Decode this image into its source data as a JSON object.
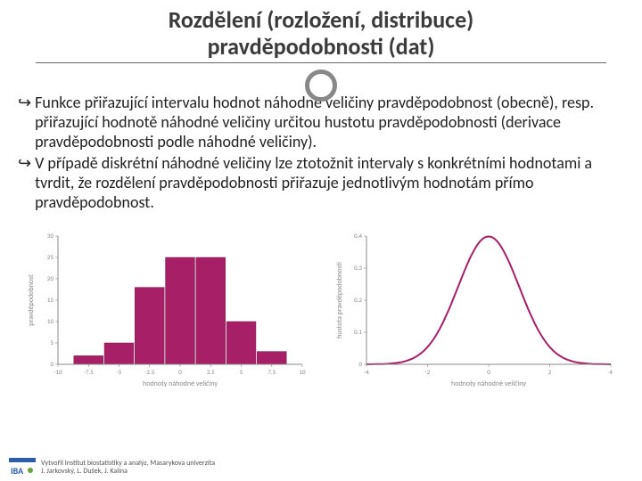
{
  "title": {
    "line1": "Rozdělení (rozložení, distribuce)",
    "line2": "pravděpodobnosti (dat)"
  },
  "bullets": [
    "Funkce přiřazující intervalu hodnot náhodné veličiny pravděpodobnost (obecně), resp. přiřazující hodnotě náhodné veličiny určitou hustotu pravděpodobnosti (derivace pravděpodobnosti podle náhodné veličiny).",
    "V případě diskrétní náhodné veličiny lze ztotožnit intervaly s konkrétními hodnotami a tvrdit, že rozdělení pravděpodobnosti přiřazuje jednotlivým hodnotám přímo pravděpodobnost."
  ],
  "histogram": {
    "type": "bar",
    "xlabel": "hodnoty náhodné veličiny",
    "ylabel": "pravděpodobnost",
    "bar_color": "#a61f67",
    "border_color": "#7a1750",
    "background_color": "#ffffff",
    "axis_color": "#888888",
    "xticks": [
      -10,
      -7.5,
      -5,
      -2.5,
      0,
      2.5,
      5,
      7.5,
      10
    ],
    "xlim": [
      -10,
      10
    ],
    "ylim": [
      0,
      30
    ],
    "yticks": [
      0,
      5,
      10,
      15,
      20,
      25,
      30
    ],
    "bars": [
      {
        "x": -7.5,
        "h": 2
      },
      {
        "x": -5,
        "h": 5
      },
      {
        "x": -2.5,
        "h": 18
      },
      {
        "x": 0,
        "h": 25
      },
      {
        "x": 2.5,
        "h": 25
      },
      {
        "x": 5,
        "h": 10
      },
      {
        "x": 7.5,
        "h": 3
      }
    ],
    "bar_width": 2.4,
    "label_fontsize": 8
  },
  "density": {
    "type": "line",
    "xlabel": "hodnoty náhodné veličiny",
    "ylabel": "hustota pravděpodobnosti",
    "line_color": "#a61f67",
    "axis_color": "#888888",
    "xlim": [
      -4,
      4
    ],
    "xticks": [
      -4,
      -2,
      0,
      2,
      4
    ],
    "ylim": [
      0,
      0.4
    ],
    "yticks": [
      0,
      0.1,
      0.2,
      0.3,
      0.4
    ],
    "line_width": 2,
    "label_fontsize": 8
  },
  "footer": {
    "line1": "Vytvořil Institut biostatistiky a analýz, Masarykova univerzita",
    "line2": "J. Jarkovský, L. Dušek, J. Kalina",
    "logo_colors": {
      "bar": "#2b5da8",
      "text": "#2b5da8",
      "accent": "#6aa342"
    }
  }
}
